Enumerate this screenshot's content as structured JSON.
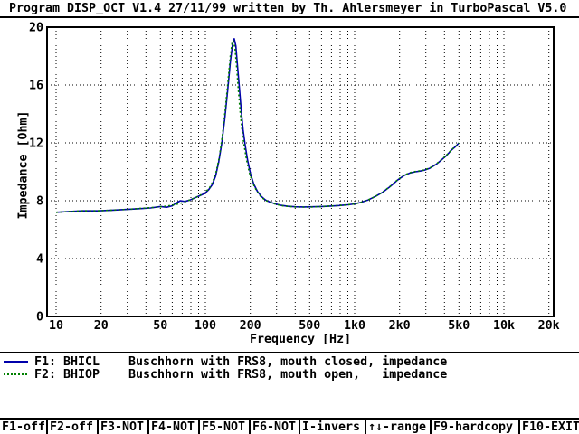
{
  "title_bar": {
    "text": "Program DISP_OCT V1.4 27/11/99 written by Th. Ahlersmeyer in TurboPascal V5.0"
  },
  "chart_data": {
    "type": "line",
    "title": "",
    "xlabel": "Frequency [Hz]",
    "ylabel": "Impedance [Ohm]",
    "x_scale": "log",
    "xlim": [
      10,
      20000
    ],
    "ylim": [
      0,
      20
    ],
    "grid": "dotted",
    "legend_position": "below",
    "x_ticks": [
      {
        "value": 10,
        "label": "10"
      },
      {
        "value": 20,
        "label": "20"
      },
      {
        "value": 50,
        "label": "50"
      },
      {
        "value": 100,
        "label": "100"
      },
      {
        "value": 200,
        "label": "200"
      },
      {
        "value": 500,
        "label": "500"
      },
      {
        "value": 1000,
        "label": "1k0"
      },
      {
        "value": 2000,
        "label": "2k0"
      },
      {
        "value": 5000,
        "label": "5k0"
      },
      {
        "value": 10000,
        "label": "10k"
      },
      {
        "value": 20000,
        "label": "20k"
      }
    ],
    "y_ticks": [
      0,
      4,
      8,
      12,
      16,
      20
    ],
    "series": [
      {
        "name": "F1: BHICL",
        "description": "Buschhorn with FRS8, mouth closed, impedance",
        "style": "solid",
        "color": "#0000AA",
        "points": [
          [
            10,
            7.2
          ],
          [
            12,
            7.25
          ],
          [
            15,
            7.3
          ],
          [
            19,
            7.3
          ],
          [
            24,
            7.35
          ],
          [
            30,
            7.4
          ],
          [
            36,
            7.45
          ],
          [
            43,
            7.5
          ],
          [
            50,
            7.6
          ],
          [
            55,
            7.55
          ],
          [
            60,
            7.65
          ],
          [
            64,
            7.85
          ],
          [
            68,
            8.0
          ],
          [
            73,
            7.95
          ],
          [
            79,
            8.05
          ],
          [
            85,
            8.2
          ],
          [
            92,
            8.35
          ],
          [
            99,
            8.5
          ],
          [
            105,
            8.75
          ],
          [
            111,
            9.1
          ],
          [
            117,
            9.7
          ],
          [
            123,
            10.7
          ],
          [
            129,
            12.0
          ],
          [
            135,
            13.7
          ],
          [
            141,
            15.6
          ],
          [
            147,
            17.6
          ],
          [
            152,
            18.8
          ],
          [
            156,
            19.2
          ],
          [
            160,
            18.7
          ],
          [
            164,
            17.4
          ],
          [
            169,
            15.8
          ],
          [
            174,
            14.2
          ],
          [
            179,
            12.9
          ],
          [
            185,
            11.8
          ],
          [
            192,
            10.8
          ],
          [
            200,
            9.9
          ],
          [
            211,
            9.15
          ],
          [
            223,
            8.65
          ],
          [
            237,
            8.3
          ],
          [
            253,
            8.05
          ],
          [
            272,
            7.9
          ],
          [
            295,
            7.78
          ],
          [
            322,
            7.68
          ],
          [
            355,
            7.62
          ],
          [
            400,
            7.58
          ],
          [
            455,
            7.57
          ],
          [
            520,
            7.58
          ],
          [
            600,
            7.6
          ],
          [
            690,
            7.63
          ],
          [
            790,
            7.67
          ],
          [
            900,
            7.72
          ],
          [
            1000,
            7.78
          ],
          [
            1100,
            7.88
          ],
          [
            1230,
            8.05
          ],
          [
            1380,
            8.3
          ],
          [
            1550,
            8.6
          ],
          [
            1740,
            9.0
          ],
          [
            1950,
            9.45
          ],
          [
            2150,
            9.75
          ],
          [
            2350,
            9.92
          ],
          [
            2550,
            10.0
          ],
          [
            2750,
            10.05
          ],
          [
            2950,
            10.12
          ],
          [
            3200,
            10.25
          ],
          [
            3500,
            10.5
          ],
          [
            3800,
            10.8
          ],
          [
            4100,
            11.1
          ],
          [
            4450,
            11.5
          ],
          [
            4750,
            11.75
          ],
          [
            5000,
            12.0
          ]
        ]
      },
      {
        "name": "F2: BHIOP",
        "description": "Buschhorn with FRS8, mouth open,   impedance",
        "style": "dotted",
        "color": "#008000",
        "points": [
          [
            10,
            7.2
          ],
          [
            12,
            7.25
          ],
          [
            15,
            7.3
          ],
          [
            19,
            7.3
          ],
          [
            24,
            7.35
          ],
          [
            30,
            7.4
          ],
          [
            36,
            7.46
          ],
          [
            43,
            7.52
          ],
          [
            50,
            7.58
          ],
          [
            56,
            7.64
          ],
          [
            62,
            7.72
          ],
          [
            68,
            7.82
          ],
          [
            74,
            7.95
          ],
          [
            80,
            8.08
          ],
          [
            86,
            8.22
          ],
          [
            93,
            8.4
          ],
          [
            100,
            8.6
          ],
          [
            106,
            8.85
          ],
          [
            112,
            9.3
          ],
          [
            118,
            10.0
          ],
          [
            124,
            11.0
          ],
          [
            130,
            12.5
          ],
          [
            136,
            14.3
          ],
          [
            142,
            16.3
          ],
          [
            147,
            18.0
          ],
          [
            151,
            18.9
          ],
          [
            154,
            19.05
          ],
          [
            158,
            18.5
          ],
          [
            162,
            17.2
          ],
          [
            166,
            15.8
          ],
          [
            171,
            14.2
          ],
          [
            176,
            12.9
          ],
          [
            182,
            11.8
          ],
          [
            189,
            10.8
          ],
          [
            197,
            9.95
          ],
          [
            208,
            9.2
          ],
          [
            220,
            8.7
          ],
          [
            234,
            8.32
          ],
          [
            250,
            8.05
          ],
          [
            270,
            7.9
          ],
          [
            295,
            7.77
          ],
          [
            322,
            7.67
          ],
          [
            355,
            7.61
          ],
          [
            400,
            7.57
          ],
          [
            455,
            7.56
          ],
          [
            520,
            7.57
          ],
          [
            600,
            7.6
          ],
          [
            690,
            7.63
          ],
          [
            790,
            7.67
          ],
          [
            900,
            7.72
          ],
          [
            1000,
            7.78
          ],
          [
            1100,
            7.88
          ],
          [
            1230,
            8.05
          ],
          [
            1380,
            8.3
          ],
          [
            1550,
            8.62
          ],
          [
            1740,
            9.02
          ],
          [
            1950,
            9.47
          ],
          [
            2150,
            9.77
          ],
          [
            2350,
            9.94
          ],
          [
            2550,
            10.02
          ],
          [
            2750,
            10.07
          ],
          [
            2950,
            10.14
          ],
          [
            3200,
            10.27
          ],
          [
            3500,
            10.52
          ],
          [
            3800,
            10.82
          ],
          [
            4100,
            11.12
          ],
          [
            4450,
            11.52
          ],
          [
            4750,
            11.77
          ],
          [
            5000,
            12.0
          ]
        ]
      }
    ]
  },
  "legend": {
    "rows": [
      {
        "key": "F1: BHICL",
        "desc": "Buschhorn with FRS8, mouth closed, impedance"
      },
      {
        "key": "F2: BHIOP",
        "desc": "Buschhorn with FRS8, mouth open,   impedance"
      }
    ]
  },
  "menu_bar": {
    "items": [
      {
        "label": "F1-off"
      },
      {
        "label": "F2-off"
      },
      {
        "label": "F3-NOT"
      },
      {
        "label": "F4-NOT"
      },
      {
        "label": "F5-NOT"
      },
      {
        "label": "F6-NOT"
      },
      {
        "label": "I-invers"
      },
      {
        "label": "↑↓-range"
      },
      {
        "label": "F9-hardcopy"
      },
      {
        "label": "F10-EXIT"
      }
    ]
  }
}
